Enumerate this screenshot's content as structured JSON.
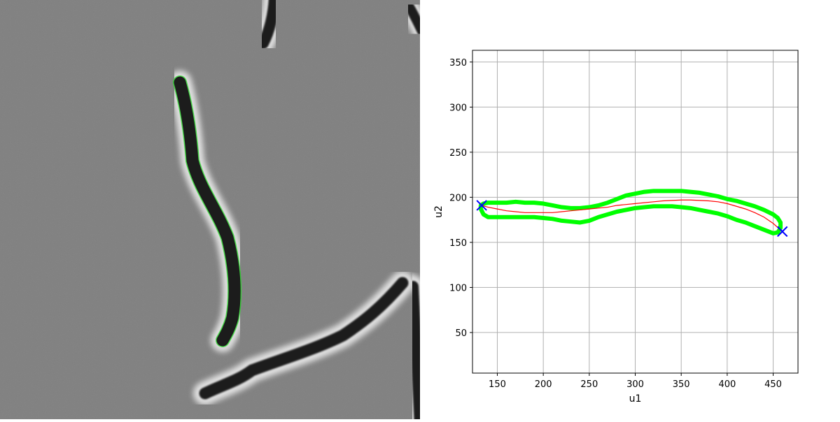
{
  "chart_data": [
    {
      "type": "image",
      "description": "",
      "colors": {
        "background": "#858585",
        "cell": "#1c1c1c",
        "halo": "#e0e0e0",
        "outline": "#00ff00"
      }
    },
    {
      "type": "line",
      "title": "",
      "xlabel": "u1",
      "ylabel": "u2",
      "xlim": [
        123,
        477
      ],
      "ylim": [
        5,
        363
      ],
      "xticks": [
        150,
        200,
        250,
        300,
        350,
        400,
        450
      ],
      "yticks": [
        50,
        100,
        150,
        200,
        250,
        300,
        350
      ],
      "grid": true,
      "series": [
        {
          "role": "contour",
          "color": "#00ff00",
          "x": [
            132,
            135,
            140,
            150,
            160,
            170,
            180,
            190,
            200,
            210,
            220,
            230,
            240,
            250,
            260,
            270,
            280,
            290,
            300,
            310,
            320,
            330,
            340,
            350,
            360,
            370,
            380,
            390,
            400,
            410,
            420,
            430,
            440,
            450,
            455,
            458,
            458,
            455,
            450,
            440,
            430,
            420,
            410,
            400,
            390,
            380,
            370,
            360,
            350,
            340,
            330,
            320,
            310,
            300,
            290,
            280,
            270,
            260,
            250,
            240,
            230,
            220,
            210,
            200,
            190,
            180,
            170,
            160,
            150,
            140,
            135,
            132
          ],
          "y": [
            191,
            193,
            194,
            194,
            194,
            195,
            194,
            194,
            193,
            191,
            189,
            188,
            188,
            189,
            191,
            194,
            198,
            202,
            204,
            206,
            207,
            207,
            207,
            207,
            206,
            205,
            203,
            201,
            198,
            196,
            193,
            190,
            186,
            181,
            177,
            172,
            166,
            161,
            160,
            164,
            168,
            172,
            175,
            179,
            182,
            184,
            186,
            188,
            189,
            190,
            190,
            190,
            189,
            188,
            186,
            184,
            181,
            178,
            174,
            172,
            173,
            174,
            176,
            177,
            178,
            178,
            178,
            178,
            178,
            178,
            181,
            187
          ]
        },
        {
          "role": "midline",
          "color": "#ff0000",
          "x": [
            133,
            140,
            150,
            160,
            170,
            180,
            190,
            200,
            210,
            220,
            230,
            240,
            250,
            260,
            270,
            280,
            290,
            300,
            310,
            320,
            330,
            340,
            350,
            360,
            370,
            380,
            390,
            400,
            410,
            420,
            430,
            440,
            450,
            460
          ],
          "y": [
            191,
            189,
            187,
            185,
            184,
            183,
            183,
            183,
            183,
            184,
            185,
            186,
            187,
            188,
            189,
            191,
            192,
            193,
            194,
            195,
            196,
            196.5,
            197,
            197,
            196.5,
            196,
            195,
            193,
            190,
            187,
            183,
            178,
            171,
            162
          ]
        },
        {
          "role": "endpoints",
          "color": "#0000ff",
          "marker": "x",
          "x": [
            133,
            460
          ],
          "y": [
            191,
            162
          ]
        }
      ]
    }
  ]
}
